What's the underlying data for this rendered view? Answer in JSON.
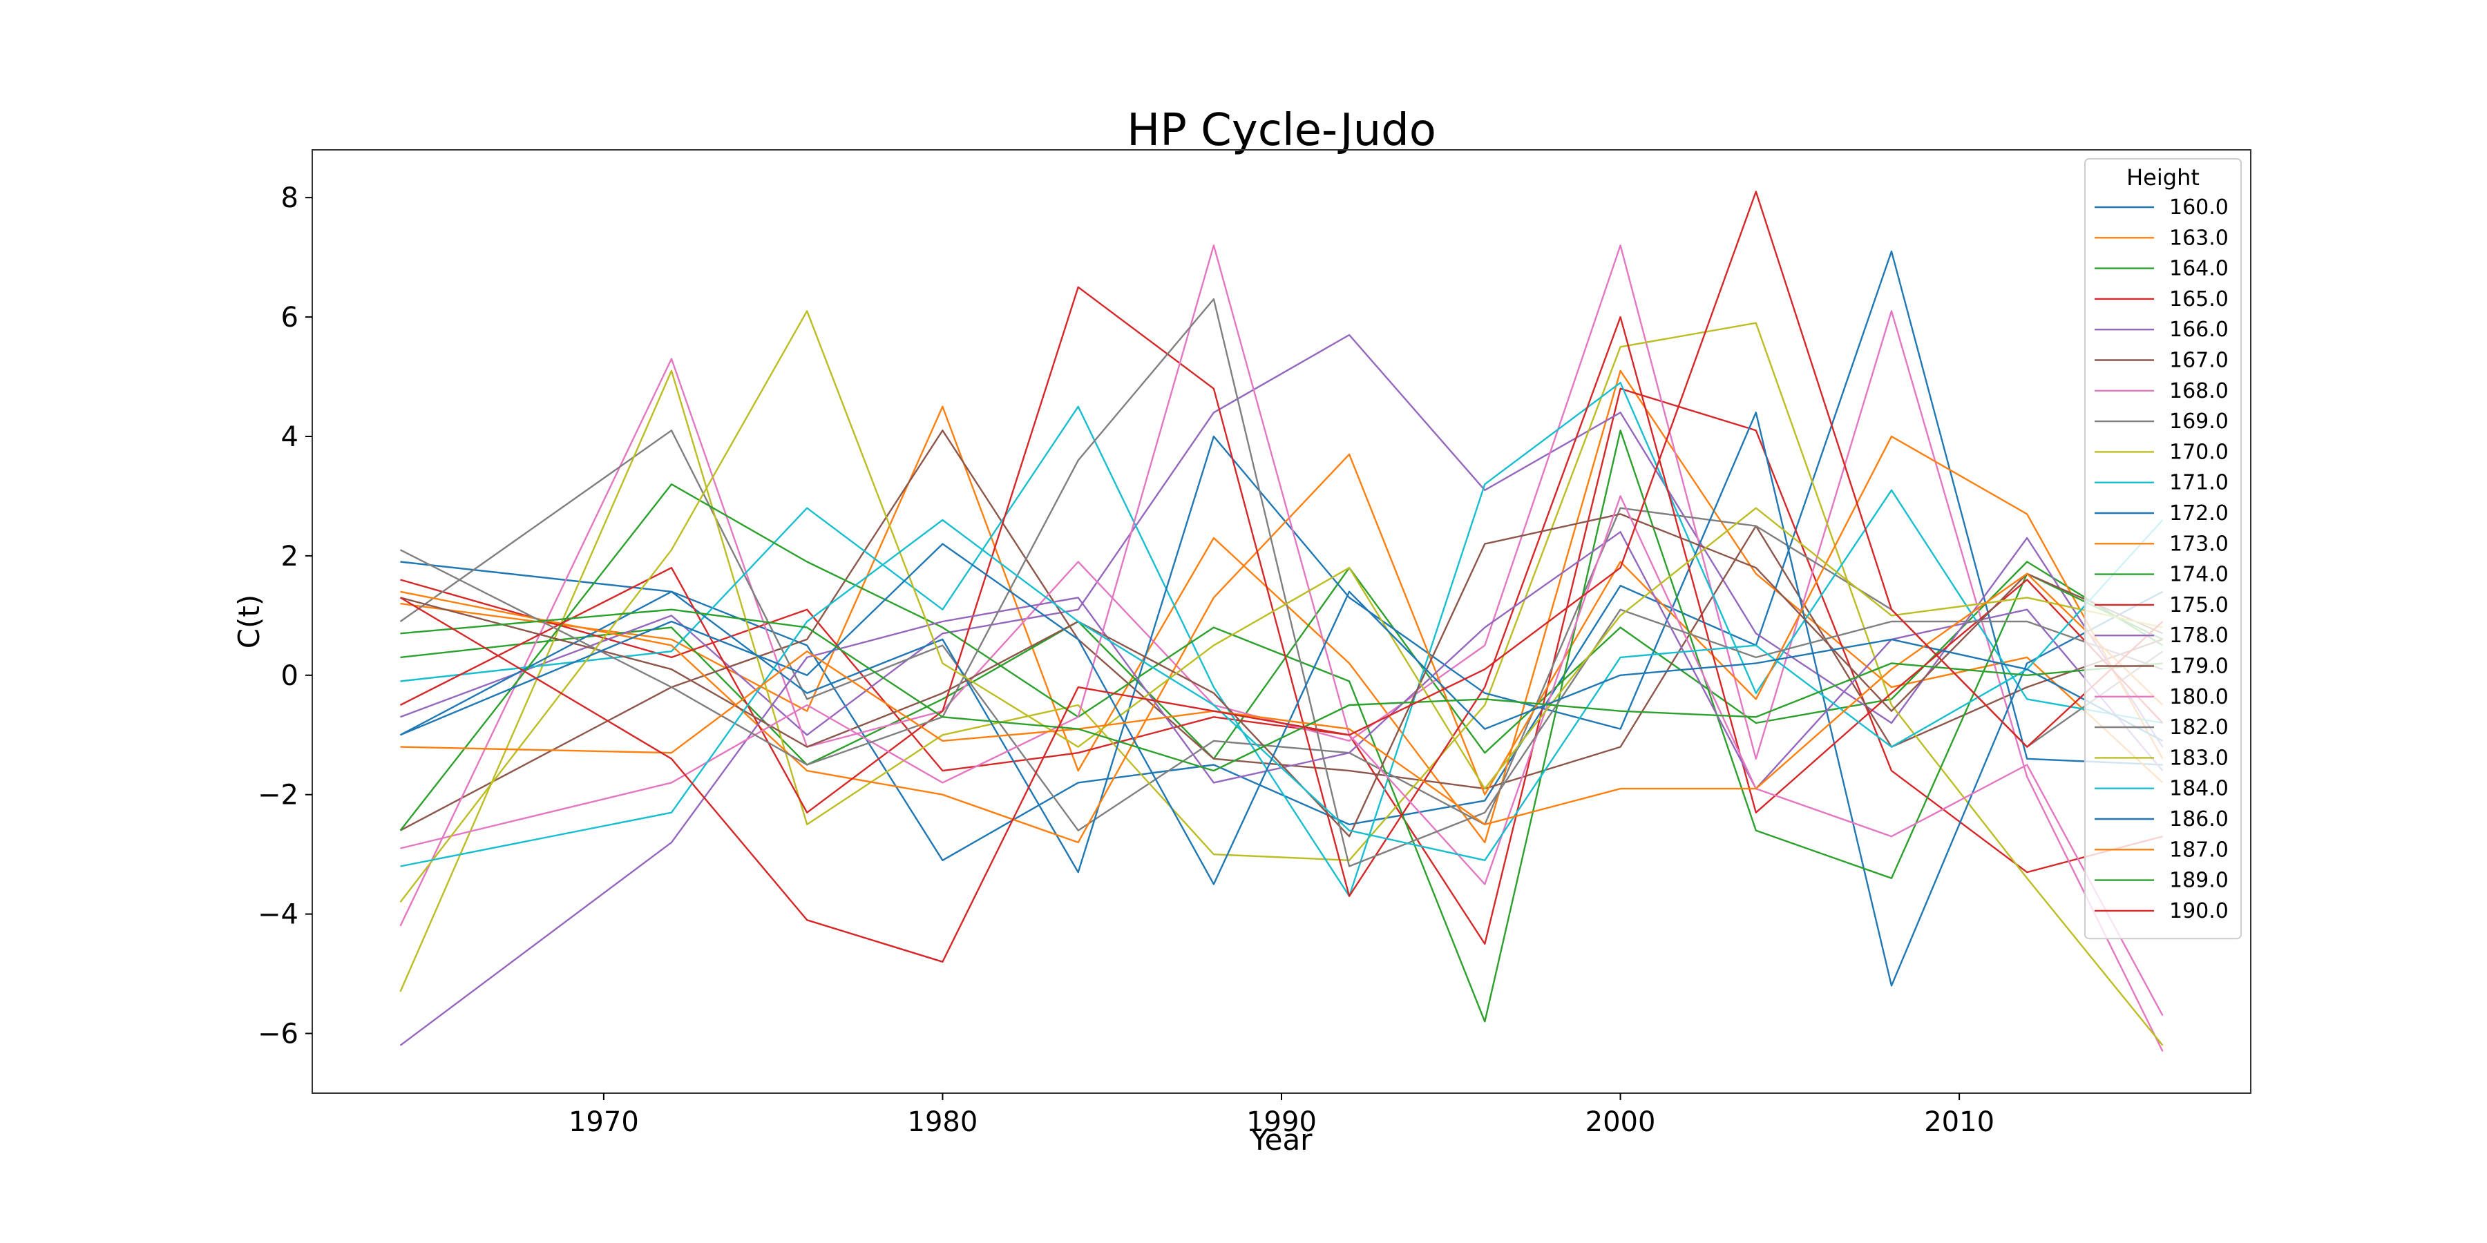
{
  "chart_data": {
    "type": "line",
    "title": "HP Cycle-Judo",
    "xlabel": "Year",
    "ylabel": "C(t)",
    "xlim": [
      1961.4,
      2018.6
    ],
    "ylim": [
      -7.0,
      8.8
    ],
    "xticks": [
      1970,
      1980,
      1990,
      2000,
      2010
    ],
    "yticks": [
      -6,
      -4,
      -2,
      0,
      2,
      4,
      6,
      8
    ],
    "grid": false,
    "legend": {
      "title": "Height",
      "position": "top-right"
    },
    "x": [
      1964,
      1972,
      1976,
      1980,
      1984,
      1988,
      1992,
      1996,
      2000,
      2004,
      2008,
      2012,
      2016
    ],
    "series": [
      {
        "name": "160.0",
        "color": "#1f77b4",
        "values": [
          1.9,
          1.4,
          0.5,
          -3.1,
          -1.8,
          -1.5,
          -2.5,
          -2.1,
          1.5,
          0.5,
          7.1,
          -1.4,
          -1.5
        ]
      },
      {
        "name": "163.0",
        "color": "#ff7f0e",
        "values": [
          1.2,
          0.6,
          -0.6,
          4.5,
          -1.6,
          2.3,
          0.2,
          -2.8,
          5.1,
          1.7,
          -0.2,
          0.3,
          -1.8
        ]
      },
      {
        "name": "164.0",
        "color": "#2ca02c",
        "values": [
          0.3,
          0.8,
          -1.5,
          -0.4,
          0.9,
          -1.4,
          1.8,
          -1.3,
          0.8,
          -0.8,
          -0.4,
          1.9,
          0.5
        ]
      },
      {
        "name": "165.0",
        "color": "#d62728",
        "values": [
          1.6,
          0.3,
          1.1,
          -1.6,
          -1.3,
          -0.7,
          -1.0,
          -4.5,
          4.8,
          4.1,
          -1.6,
          -3.3,
          -2.7
        ]
      },
      {
        "name": "166.0",
        "color": "#9467bd",
        "values": [
          -0.7,
          1.0,
          -1.0,
          0.7,
          1.1,
          4.4,
          5.7,
          3.1,
          4.4,
          0.7,
          -0.8,
          2.3,
          -1.2
        ]
      },
      {
        "name": "167.0",
        "color": "#8c564b",
        "values": [
          -2.6,
          -0.2,
          0.6,
          4.1,
          0.6,
          -1.4,
          -1.6,
          -1.9,
          -1.2,
          2.5,
          -1.2,
          -0.2,
          0.6
        ]
      },
      {
        "name": "168.0",
        "color": "#e377c2",
        "values": [
          -4.2,
          5.3,
          -1.2,
          -0.6,
          1.9,
          -0.5,
          -1.1,
          0.5,
          7.2,
          -1.4,
          6.1,
          -1.7,
          -6.3
        ]
      },
      {
        "name": "169.0",
        "color": "#7f7f7f",
        "values": [
          0.9,
          4.1,
          -0.4,
          0.5,
          -2.6,
          -1.1,
          -1.3,
          -2.5,
          2.8,
          2.5,
          1.1,
          -1.2,
          0.4
        ]
      },
      {
        "name": "170.0",
        "color": "#bcbd22",
        "values": [
          -5.3,
          5.1,
          -2.5,
          -1.0,
          -0.5,
          -3.0,
          -3.1,
          -0.5,
          5.5,
          5.9,
          -0.5,
          -3.4,
          -6.2
        ]
      },
      {
        "name": "171.0",
        "color": "#17becf",
        "values": [
          -0.1,
          0.4,
          2.8,
          1.1,
          4.5,
          -0.2,
          -3.7,
          3.2,
          4.9,
          -0.3,
          3.1,
          -0.4,
          -0.8
        ]
      },
      {
        "name": "172.0",
        "color": "#1f77b4",
        "values": [
          -1.0,
          1.4,
          -0.3,
          0.6,
          -3.3,
          4.0,
          1.3,
          -0.3,
          -0.9,
          4.4,
          -5.2,
          0.2,
          1.4
        ]
      },
      {
        "name": "173.0",
        "color": "#ff7f0e",
        "values": [
          1.4,
          0.5,
          -1.6,
          -2.0,
          -2.8,
          1.3,
          3.7,
          -2.0,
          1.9,
          -0.4,
          4.0,
          2.7,
          -1.4
        ]
      },
      {
        "name": "174.0",
        "color": "#2ca02c",
        "values": [
          -2.6,
          3.2,
          1.9,
          0.8,
          -0.7,
          0.8,
          -0.1,
          -5.8,
          4.1,
          -2.6,
          -3.4,
          1.7,
          0.6
        ]
      },
      {
        "name": "175.0",
        "color": "#d62728",
        "values": [
          -0.5,
          1.8,
          -2.3,
          -0.6,
          6.5,
          4.8,
          -3.7,
          -0.2,
          6.0,
          -2.3,
          -0.3,
          1.6,
          -0.8
        ]
      },
      {
        "name": "178.0",
        "color": "#9467bd",
        "values": [
          -6.2,
          -2.8,
          0.3,
          0.9,
          1.3,
          -1.8,
          -1.3,
          0.8,
          2.4,
          -1.9,
          0.6,
          1.1,
          -1.6
        ]
      },
      {
        "name": "179.0",
        "color": "#8c564b",
        "values": [
          1.3,
          0.1,
          -1.2,
          -0.3,
          0.9,
          -0.3,
          -2.7,
          2.2,
          2.7,
          1.8,
          -0.6,
          1.7,
          0.7
        ]
      },
      {
        "name": "180.0",
        "color": "#e377c2",
        "values": [
          -2.9,
          -1.8,
          -0.5,
          -1.8,
          -0.7,
          7.2,
          -1.0,
          -3.5,
          3.0,
          -1.9,
          -2.7,
          -1.5,
          -5.7
        ]
      },
      {
        "name": "182.0",
        "color": "#7f7f7f",
        "values": [
          2.1,
          -0.2,
          -1.5,
          -0.7,
          3.6,
          6.3,
          -3.2,
          -2.3,
          1.1,
          0.3,
          0.9,
          0.9,
          0.1
        ]
      },
      {
        "name": "183.0",
        "color": "#bcbd22",
        "values": [
          -3.8,
          2.1,
          6.1,
          0.2,
          -1.2,
          0.5,
          1.8,
          -1.9,
          1.0,
          2.8,
          1.0,
          1.3,
          0.8
        ]
      },
      {
        "name": "184.0",
        "color": "#17becf",
        "values": [
          -3.2,
          -2.3,
          0.9,
          2.6,
          0.9,
          -0.5,
          -2.6,
          -3.1,
          0.3,
          0.5,
          -1.2,
          0.1,
          2.6
        ]
      },
      {
        "name": "186.0",
        "color": "#1f77b4",
        "values": [
          -1.0,
          0.9,
          0.0,
          2.2,
          0.6,
          -3.5,
          1.4,
          -0.9,
          0.0,
          0.2,
          0.6,
          0.1,
          -1.1
        ]
      },
      {
        "name": "187.0",
        "color": "#ff7f0e",
        "values": [
          -1.2,
          -1.3,
          0.4,
          -1.1,
          -0.9,
          -0.6,
          -0.9,
          -2.5,
          -1.9,
          -1.9,
          0.1,
          1.7,
          -0.5
        ]
      },
      {
        "name": "189.0",
        "color": "#2ca02c",
        "values": [
          0.7,
          1.1,
          0.8,
          -0.7,
          -0.9,
          -1.6,
          -0.5,
          -0.4,
          -0.6,
          -0.7,
          0.2,
          0.0,
          0.2
        ]
      },
      {
        "name": "190.0",
        "color": "#d62728",
        "values": [
          1.3,
          -1.4,
          -4.1,
          -4.8,
          -0.2,
          -0.6,
          -1.0,
          0.1,
          1.8,
          8.1,
          1.1,
          -1.2,
          0.9
        ]
      }
    ]
  }
}
